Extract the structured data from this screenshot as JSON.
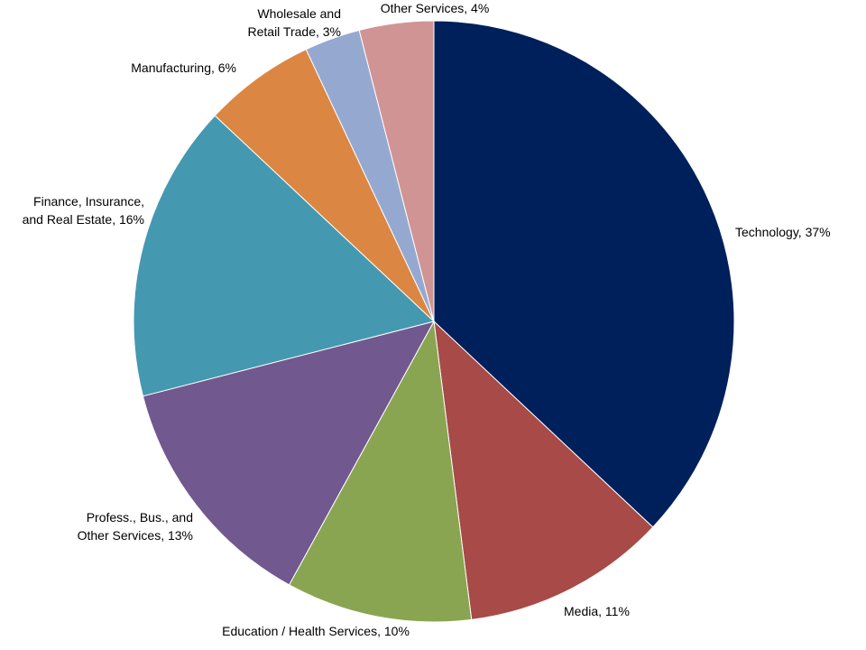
{
  "chart_data": {
    "type": "pie",
    "title": "",
    "start_angle_deg": 0,
    "direction": "clockwise",
    "slices": [
      {
        "label": "Technology",
        "value": 37,
        "data_label": "Technology, 37%",
        "color": "#00205B"
      },
      {
        "label": "Media",
        "value": 11,
        "data_label": "Media, 11%",
        "color": "#A84A47"
      },
      {
        "label": "Education / Health Services",
        "value": 10,
        "data_label": "Education / Health Services, 10%",
        "color": "#8AA551"
      },
      {
        "label": "Profess., Bus., and Other Services",
        "value": 13,
        "data_label": "Profess., Bus., and Other Services, 13%",
        "color": "#71588F"
      },
      {
        "label": "Finance, Insurance, and Real Estate",
        "value": 16,
        "data_label": "Finance, Insurance, and Real Estate, 16%",
        "color": "#4499B0"
      },
      {
        "label": "Manufacturing",
        "value": 6,
        "data_label": "Manufacturing, 6%",
        "color": "#DB8642"
      },
      {
        "label": "Wholesale and Retail Trade",
        "value": 3,
        "data_label": "Wholesale and Retail Trade, 3%",
        "color": "#95A9D0"
      },
      {
        "label": "Other Services",
        "value": 4,
        "data_label": "Other Services, 4%",
        "color": "#D09494"
      }
    ]
  }
}
